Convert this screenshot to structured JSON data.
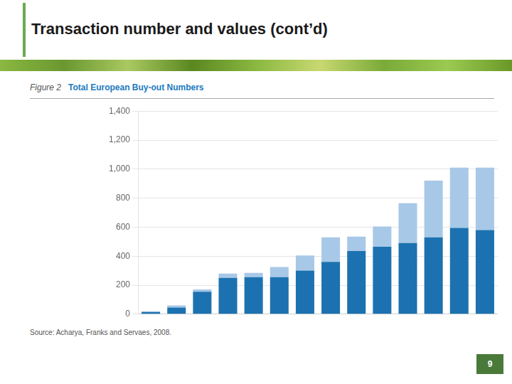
{
  "chart_data": {
    "type": "bar",
    "title": "Transaction number and values (cont’d)",
    "subtitle": "Total European Buy-out Numbers",
    "annotations": [
      "Figure 2",
      "Source: Acharya, Franks and Servaes, 2008.",
      "9"
    ],
    "categories": [
      null,
      null,
      null,
      null,
      null,
      null,
      null,
      null,
      null,
      null,
      null,
      null,
      null,
      null
    ],
    "series": [
      {
        "color": "#1c72b0",
        "values": [
          15,
          45,
          155,
          250,
          255,
          255,
          300,
          360,
          435,
          465,
          490,
          530,
          595,
          580
        ]
      },
      {
        "color": "#a8c8e8",
        "values": [
          5,
          15,
          15,
          30,
          30,
          70,
          105,
          170,
          100,
          140,
          275,
          390,
          415,
          430
        ]
      }
    ],
    "stacked": true,
    "ylim": [
      0,
      1400
    ],
    "yticks": [
      0,
      200,
      400,
      600,
      800,
      {
        "value": 1000,
        "label": "1,000"
      },
      {
        "value": 1200,
        "label": "1,200"
      },
      {
        "value": 1400,
        "label": "1,400"
      }
    ],
    "grid": true,
    "tick_labels": "y"
  }
}
